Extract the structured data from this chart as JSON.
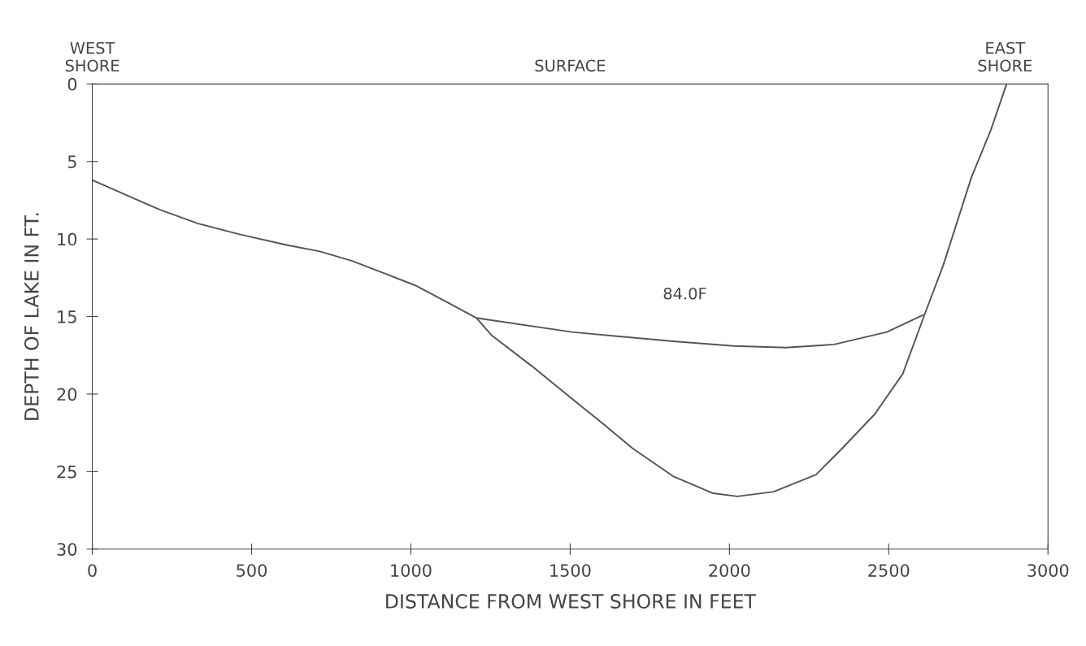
{
  "chart_data": {
    "type": "line",
    "xlabel": "DISTANCE FROM WEST SHORE IN FEET",
    "ylabel": "DEPTH OF LAKE IN FT.",
    "xlim": [
      0,
      3000
    ],
    "xticks": [
      0,
      500,
      1000,
      1500,
      2000,
      2500,
      3000
    ],
    "ylim": [
      30,
      0
    ],
    "yticks": [
      0,
      5,
      10,
      15,
      20,
      25,
      30
    ],
    "grid": false,
    "legend": false,
    "marker": "none",
    "line_style": "solid",
    "series": [
      {
        "color": "#555555",
        "x": [
          0,
          110,
          211,
          332,
          462,
          613,
          714,
          814,
          915,
          1015,
          1116,
          1206,
          1253,
          1380,
          1506,
          1608,
          1696,
          1823,
          1949,
          2025,
          2139,
          2272,
          2354,
          2456,
          2544,
          2614,
          2671,
          2760,
          2820,
          2870
        ],
        "values": [
          6.2,
          7.2,
          8.1,
          9.0,
          9.7,
          10.4,
          10.8,
          11.4,
          12.2,
          13.0,
          14.1,
          15.1,
          16.2,
          18.2,
          20.3,
          22.0,
          23.5,
          25.3,
          26.4,
          26.6,
          26.3,
          25.2,
          23.5,
          21.3,
          18.7,
          14.8,
          11.7,
          6.0,
          3.0,
          0
        ]
      },
      {
        "color": "#555555",
        "x": [
          1209,
          1506,
          1823,
          2013,
          2177,
          2329,
          2494,
          2608
        ],
        "values": [
          15.1,
          16.0,
          16.6,
          16.9,
          17.0,
          16.8,
          16.0,
          14.9
        ]
      }
    ],
    "annotations": [
      "WEST\nSHORE",
      "SURFACE",
      "EAST\nSHORE",
      "84.0F"
    ]
  }
}
